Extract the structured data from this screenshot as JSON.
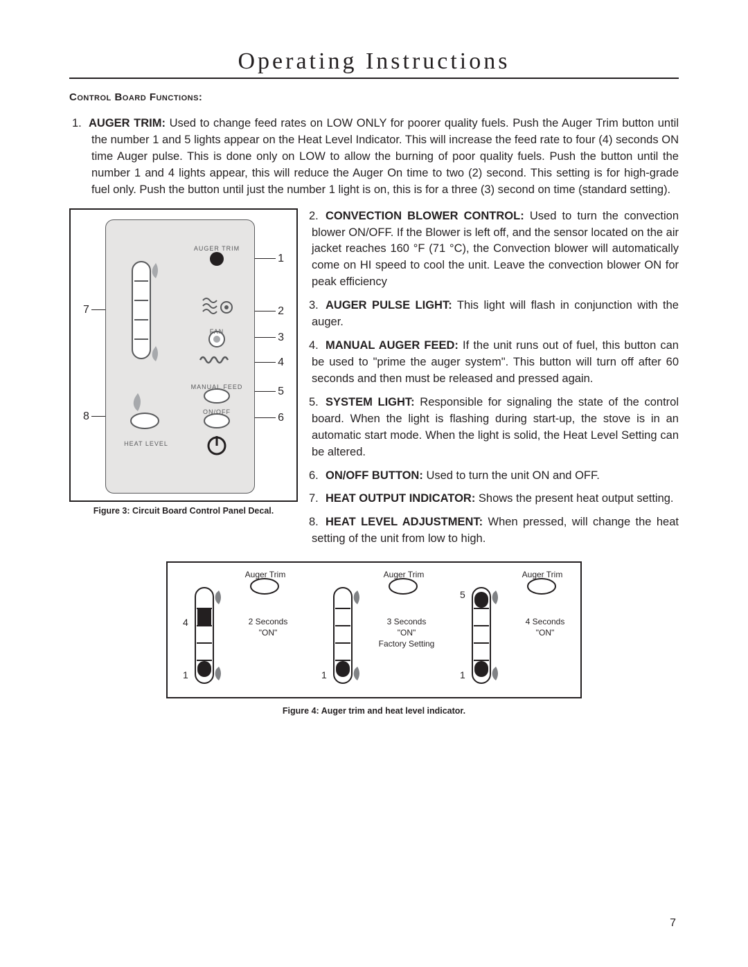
{
  "title": "Operating Instructions",
  "section_heading": "Control Board Functions:",
  "page_number": "7",
  "item1": {
    "n": "1.",
    "bold": "AUGER TRIM:",
    "text": " Used to change feed rates on LOW ONLY for poorer quality fuels. Push the Auger Trim button until the number 1 and 5 lights appear on the Heat Level Indicator.  This will increase the feed rate to four (4) seconds ON time Auger pulse.  This is done only on LOW to allow the burning of poor quality fuels. Push the button until the number 1 and 4 lights appear, this will reduce the Auger On time to two (2) second. This setting is for high-grade fuel only.  Push the button until just the number 1 light is on, this is for a three (3) second on time (standard setting)."
  },
  "items": [
    {
      "n": "2.",
      "bold": "CONVECTION BLOWER CONTROL:",
      "text": " Used to turn the convection blower ON/OFF.  If the Blower is left off, and the sensor located on the air jacket reaches 160 °F (71 °C), the Convection blower will automatically come on HI speed to cool the unit. Leave the convection blower ON for peak efficiency"
    },
    {
      "n": "3.",
      "bold": "AUGER PULSE LIGHT:",
      "text": " This light will flash in conjunction with the auger."
    },
    {
      "n": "4.",
      "bold": "MANUAL AUGER FEED:",
      "text": " If the unit runs out of fuel, this button can be used to \"prime the auger system\". This button will turn off after 60 seconds and then must be released and pressed again."
    },
    {
      "n": "5.",
      "bold": "SYSTEM LIGHT:",
      "text": " Responsible for signaling the state of the control board. When the light is flashing during start-up, the stove is in an automatic start mode. When the light is solid, the Heat Level Setting can be altered."
    },
    {
      "n": "6.",
      "bold": "ON/OFF BUTTON:",
      "text": " Used to turn the unit ON and OFF."
    },
    {
      "n": "7.",
      "bold": "HEAT OUTPUT INDICATOR:",
      "text": " Shows the present heat output setting."
    },
    {
      "n": "8.",
      "bold": "HEAT LEVEL ADJUSTMENT:",
      "text": " When pressed, will change the heat setting of the unit from low to high."
    }
  ],
  "fig3": {
    "caption": "Figure 3: Circuit Board Control Panel Decal.",
    "labels": {
      "auger_trim": "AUGER TRIM",
      "fan": "FAN",
      "manual_feed": "MANUAL FEED",
      "on_off": "ON/OFF",
      "heat_level": "HEAT LEVEL"
    },
    "callouts": {
      "c1": "1",
      "c2": "2",
      "c3": "3",
      "c4": "4",
      "c5": "5",
      "c6": "6",
      "c7": "7",
      "c8": "8"
    },
    "colors": {
      "panel_bg": "#e6e5e4",
      "stroke": "#58595b",
      "fill_dark": "#231f20"
    }
  },
  "fig4": {
    "caption": "Figure 4: Auger trim  and heat level indicator.",
    "auger_trim_label": "Auger Trim",
    "cells": [
      {
        "top_num": "",
        "bottom_num": "4",
        "line1": "2 Seconds",
        "line2": "\"ON\"",
        "line3": "",
        "low": "1",
        "lit": [
          0,
          3
        ]
      },
      {
        "top_num": "",
        "bottom_num": "",
        "line1": "3 Seconds",
        "line2": "\"ON\"",
        "line3": "Factory Setting",
        "low": "1",
        "lit": [
          0
        ]
      },
      {
        "top_num": "5",
        "bottom_num": "",
        "line1": "4 Seconds",
        "line2": "\"ON\"",
        "line3": "",
        "low": "1",
        "lit": [
          0,
          4
        ]
      }
    ]
  }
}
